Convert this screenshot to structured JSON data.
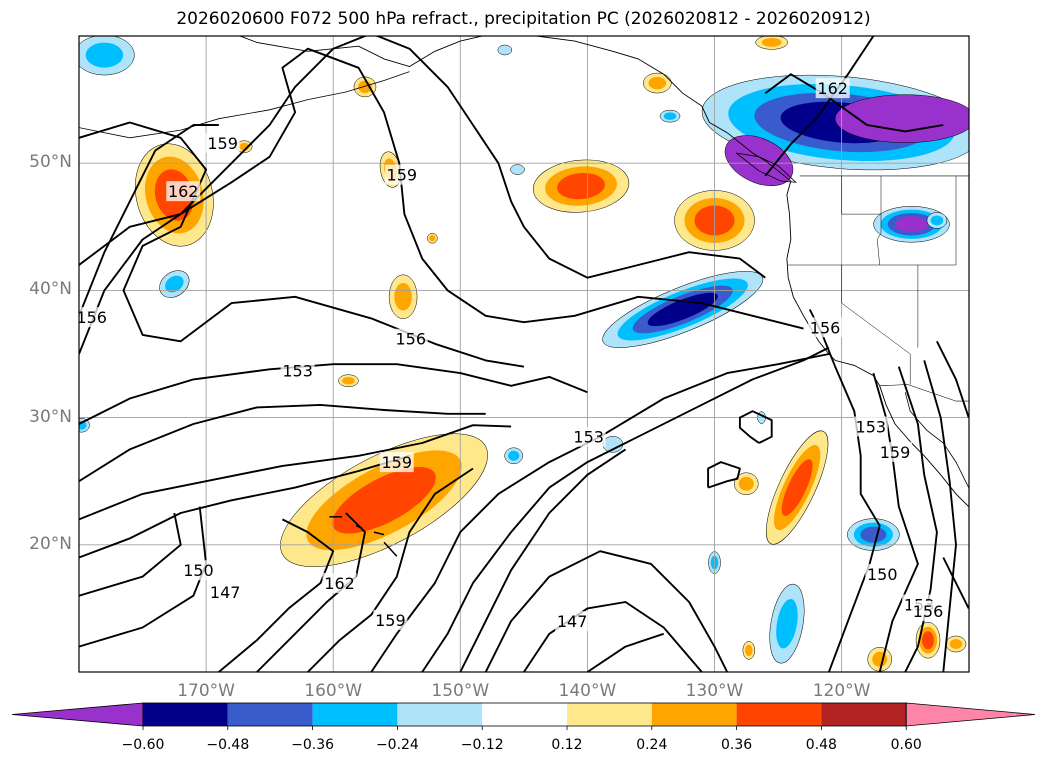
{
  "title": "2026020600 F072 500 hPa refract., precipitation PC (2026020812 - 2026020912)",
  "map": {
    "lat_labels": [
      {
        "text": "50°N",
        "lat": 50
      },
      {
        "text": "40°N",
        "lat": 40
      },
      {
        "text": "30°N",
        "lat": 30
      },
      {
        "text": "20°N",
        "lat": 20
      }
    ],
    "lon_labels": [
      {
        "text": "170°W",
        "lon": -170
      },
      {
        "text": "160°W",
        "lon": -160
      },
      {
        "text": "150°W",
        "lon": -150
      },
      {
        "text": "140°W",
        "lon": -140
      },
      {
        "text": "130°W",
        "lon": -130
      },
      {
        "text": "120°W",
        "lon": -120
      }
    ],
    "contour_labels": [
      {
        "text": "159",
        "lon": -168.7,
        "lat": 51.6
      },
      {
        "text": "162",
        "lon": -171.8,
        "lat": 47.8
      },
      {
        "text": "159",
        "lon": -154.6,
        "lat": 49.1
      },
      {
        "text": "156",
        "lon": -179,
        "lat": 37.9
      },
      {
        "text": "156",
        "lon": -153.9,
        "lat": 36.2
      },
      {
        "text": "153",
        "lon": -162.8,
        "lat": 33.7
      },
      {
        "text": "159",
        "lon": -155,
        "lat": 26.5
      },
      {
        "text": "153",
        "lon": -139.9,
        "lat": 28.5
      },
      {
        "text": "162",
        "lon": -159.5,
        "lat": 17.0
      },
      {
        "text": "159",
        "lon": -155.5,
        "lat": 14.1
      },
      {
        "text": "150",
        "lon": -170.6,
        "lat": 18.0
      },
      {
        "text": "147",
        "lon": -168.5,
        "lat": 16.3
      },
      {
        "text": "147",
        "lon": -141.2,
        "lat": 14.0
      },
      {
        "text": "156",
        "lon": -121.3,
        "lat": 37.1
      },
      {
        "text": "153",
        "lon": -117.7,
        "lat": 29.3
      },
      {
        "text": "162",
        "lon": -120.7,
        "lat": 55.9
      },
      {
        "text": "150",
        "lon": -116.8,
        "lat": 17.7
      },
      {
        "text": "153",
        "lon": -113.9,
        "lat": 15.3
      },
      {
        "text": "156",
        "lon": -113.2,
        "lat": 14.8
      },
      {
        "text": "159",
        "lon": -115.8,
        "lat": 27.3
      }
    ]
  },
  "colorbar": {
    "tick_labels": [
      "−0.60",
      "−0.48",
      "−0.36",
      "−0.24",
      "−0.12",
      "0.12",
      "0.24",
      "0.36",
      "0.48",
      "0.60"
    ],
    "colors": [
      "#9932cc",
      "#00008b",
      "#3a5bcc",
      "#00bfff",
      "#aee3f9",
      "#ffffff",
      "#ffe88c",
      "#ffa500",
      "#ff4500",
      "#b22222",
      "#ff85a8"
    ]
  }
}
